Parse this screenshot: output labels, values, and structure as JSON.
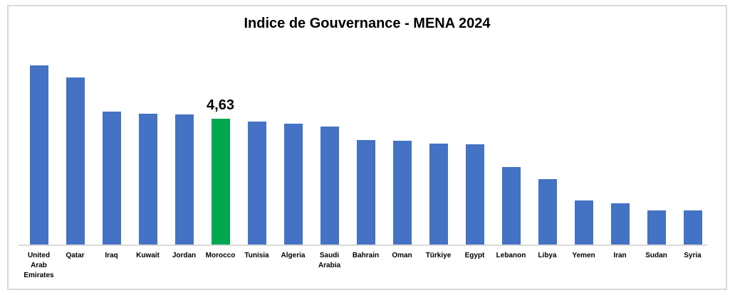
{
  "window": {
    "background_color": "#FFFFFF",
    "frame_border_color": "#D9D9D9"
  },
  "chart_data": {
    "type": "bar",
    "title": "Indice de Gouvernance - MENA 2024",
    "categories": [
      "United Arab Emirates",
      "Qatar",
      "Iraq",
      "Kuwait",
      "Jordan",
      "Morocco",
      "Tunisia",
      "Algeria",
      "Saudi Arabia",
      "Bahrain",
      "Oman",
      "Türkiye",
      "Egypt",
      "Lebanon",
      "Libya",
      "Yemen",
      "Iran",
      "Sudan",
      "Syria"
    ],
    "values": [
      6.57,
      6.13,
      4.87,
      4.81,
      4.79,
      4.63,
      4.53,
      4.45,
      4.34,
      3.86,
      3.81,
      3.73,
      3.69,
      2.86,
      2.43,
      1.66,
      1.55,
      1.29,
      1.29
    ],
    "bar_color": "#4472C4",
    "highlight": {
      "category": "Morocco",
      "color": "#00A74F",
      "data_label": "4,63"
    },
    "xlabel": "",
    "ylabel": "",
    "ylim": [
      0,
      7
    ],
    "grid": false,
    "legend": "none",
    "axis_line_color": "#D9D9D9"
  }
}
